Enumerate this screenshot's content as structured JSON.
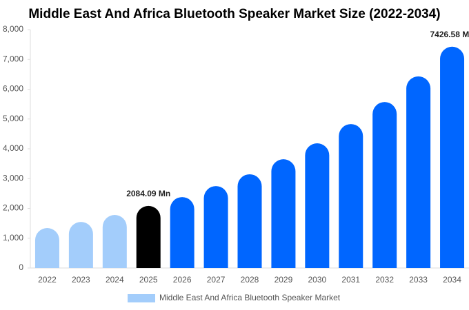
{
  "chart_data": {
    "type": "bar",
    "title": "Middle East And Africa Bluetooth Speaker Market Size (2022-2034)",
    "categories": [
      "2022",
      "2023",
      "2024",
      "2025",
      "2026",
      "2027",
      "2028",
      "2029",
      "2030",
      "2031",
      "2032",
      "2033",
      "2034"
    ],
    "series": [
      {
        "name": "Middle East And Africa Bluetooth Speaker Market",
        "color": "#a3cdfb",
        "colors": [
          "#a3cdfb",
          "#a3cdfb",
          "#a3cdfb",
          "#000000",
          "#0066ff",
          "#0066ff",
          "#0066ff",
          "#0066ff",
          "#0066ff",
          "#0066ff",
          "#0066ff",
          "#0066ff",
          "#0066ff"
        ],
        "values": [
          1340,
          1545,
          1780,
          2084.09,
          2380,
          2750,
          3145,
          3650,
          4185,
          4830,
          5570,
          6430,
          7426.58
        ],
        "value_labels": [
          null,
          null,
          null,
          "2084.09 Mn",
          null,
          null,
          null,
          null,
          null,
          null,
          null,
          null,
          "7426.58 Mn"
        ]
      }
    ],
    "ylim": [
      0,
      8000
    ],
    "yticks": [
      0,
      {
        "value": 1000,
        "label": "1,000"
      },
      {
        "value": 2000,
        "label": "2,000"
      },
      {
        "value": 3000,
        "label": "3,000"
      },
      {
        "value": 4000,
        "label": "4,000"
      },
      {
        "value": 5000,
        "label": "5,000"
      },
      {
        "value": 6000,
        "label": "6,000"
      },
      {
        "value": 7000,
        "label": "7,000"
      },
      {
        "value": 8000,
        "label": "8,000"
      }
    ]
  }
}
